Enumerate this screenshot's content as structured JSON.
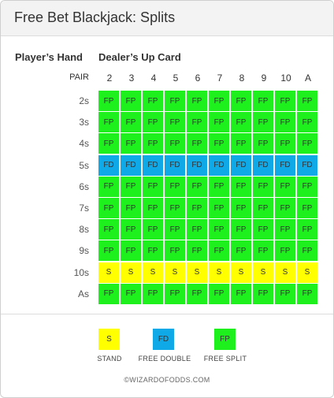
{
  "title": "Free Bet Blackjack: Splits",
  "labels": {
    "players_hand": "Player’s Hand",
    "dealers_up_card": "Dealer’s Up Card",
    "pair": "PAIR"
  },
  "dealer_cards": [
    "2",
    "3",
    "4",
    "5",
    "6",
    "7",
    "8",
    "9",
    "10",
    "A"
  ],
  "colors": {
    "S": "#ffff00",
    "FD": "#10a9e8",
    "FP": "#1ef01e"
  },
  "rows": [
    {
      "pair": "2s",
      "actions": [
        "FP",
        "FP",
        "FP",
        "FP",
        "FP",
        "FP",
        "FP",
        "FP",
        "FP",
        "FP"
      ]
    },
    {
      "pair": "3s",
      "actions": [
        "FP",
        "FP",
        "FP",
        "FP",
        "FP",
        "FP",
        "FP",
        "FP",
        "FP",
        "FP"
      ]
    },
    {
      "pair": "4s",
      "actions": [
        "FP",
        "FP",
        "FP",
        "FP",
        "FP",
        "FP",
        "FP",
        "FP",
        "FP",
        "FP"
      ]
    },
    {
      "pair": "5s",
      "actions": [
        "FD",
        "FD",
        "FD",
        "FD",
        "FD",
        "FD",
        "FD",
        "FD",
        "FD",
        "FD"
      ]
    },
    {
      "pair": "6s",
      "actions": [
        "FP",
        "FP",
        "FP",
        "FP",
        "FP",
        "FP",
        "FP",
        "FP",
        "FP",
        "FP"
      ]
    },
    {
      "pair": "7s",
      "actions": [
        "FP",
        "FP",
        "FP",
        "FP",
        "FP",
        "FP",
        "FP",
        "FP",
        "FP",
        "FP"
      ]
    },
    {
      "pair": "8s",
      "actions": [
        "FP",
        "FP",
        "FP",
        "FP",
        "FP",
        "FP",
        "FP",
        "FP",
        "FP",
        "FP"
      ]
    },
    {
      "pair": "9s",
      "actions": [
        "FP",
        "FP",
        "FP",
        "FP",
        "FP",
        "FP",
        "FP",
        "FP",
        "FP",
        "FP"
      ]
    },
    {
      "pair": "10s",
      "actions": [
        "S",
        "S",
        "S",
        "S",
        "S",
        "S",
        "S",
        "S",
        "S",
        "S"
      ]
    },
    {
      "pair": "As",
      "actions": [
        "FP",
        "FP",
        "FP",
        "FP",
        "FP",
        "FP",
        "FP",
        "FP",
        "FP",
        "FP"
      ]
    }
  ],
  "legend": [
    {
      "code": "S",
      "label": "STAND"
    },
    {
      "code": "FD",
      "label": "FREE DOUBLE"
    },
    {
      "code": "FP",
      "label": "FREE SPLIT"
    }
  ],
  "copyright": "©WIZARDOFODDS.COM"
}
